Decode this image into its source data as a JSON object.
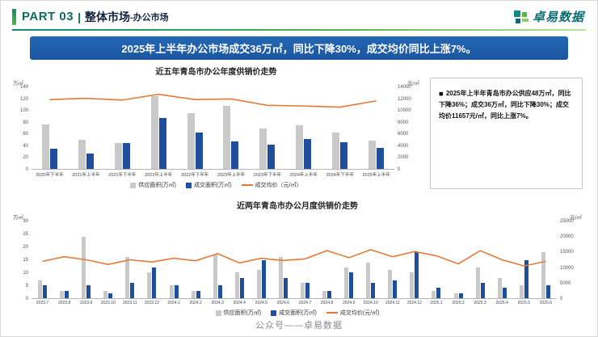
{
  "header": {
    "part_label": "PART 03",
    "divider": "|",
    "title_main": "整体市场",
    "title_sub": "-办公市场",
    "logo_text": "卓易数据"
  },
  "banner": {
    "text": "2025年上半年办公市场成交36万㎡，同比下降30%，成交均价同比上涨7%。"
  },
  "summary_box": {
    "bullet": "◼",
    "text": "2025年上半年青岛市办公供应48万㎡，同比下降36%；成交36万㎡，同比下降30%；成交均价11657元/㎡，同比上涨7%。"
  },
  "footer": {
    "text": "公众号——卓易数据"
  },
  "colors": {
    "accent_teal": "#0e8a7e",
    "accent_green": "#57b847",
    "banner_blue": "#1c55a0",
    "supply_gray": "#c9c9c9",
    "sales_blue": "#1f4e9e",
    "price_orange": "#e07b39"
  },
  "chart_data": [
    {
      "type": "bar",
      "title": "近五年青岛市办公年度供销价走势",
      "left_axis_unit": "万㎡",
      "right_axis_unit": "元/㎡",
      "left_max": 140,
      "right_max": 14000,
      "left_ticks": [
        0,
        20,
        40,
        60,
        80,
        100,
        120,
        140
      ],
      "right_ticks": [
        0,
        2000,
        4000,
        6000,
        8000,
        10000,
        12000,
        14000
      ],
      "categories": [
        "2020年下半年",
        "2021年上半年",
        "2021年下半年",
        "2022年上半年",
        "2022年下半年",
        "2023年上半年",
        "2023年下半年",
        "2024年上半年",
        "2024年下半年",
        "2025年上半年"
      ],
      "series": [
        {
          "name": "供应面积(万㎡)",
          "type": "bar",
          "axis": "left",
          "color": "#c9c9c9",
          "values": [
            76,
            50,
            44,
            125,
            96,
            108,
            70,
            75,
            62,
            48
          ]
        },
        {
          "name": "成交面积(万㎡)",
          "type": "bar",
          "axis": "left",
          "color": "#1f4e9e",
          "values": [
            35,
            27,
            44,
            88,
            62,
            47,
            41,
            51,
            46,
            36
          ]
        },
        {
          "name": "成交均价（元/㎡）",
          "type": "line",
          "axis": "right",
          "color": "#e07b39",
          "values": [
            11900,
            12100,
            11800,
            12800,
            11900,
            12000,
            10900,
            10800,
            10600,
            11657
          ]
        }
      ]
    },
    {
      "type": "bar",
      "title": "近两年青岛市办公月度供销价走势",
      "left_axis_unit": "万㎡",
      "right_axis_unit": "元/㎡",
      "left_max": 30,
      "right_max": 25000,
      "left_ticks": [
        0,
        5,
        10,
        15,
        20,
        25,
        30
      ],
      "right_ticks": [
        0,
        5000,
        10000,
        15000,
        20000,
        25000
      ],
      "categories": [
        "2023.7",
        "2023.8",
        "2023.9",
        "2023.10",
        "2023.11",
        "2023.12",
        "2024.1",
        "2024.2",
        "2024.3",
        "2024.4",
        "2024.5",
        "2024.6",
        "2024.7",
        "2024.8",
        "2024.9",
        "2024.10",
        "2024.11",
        "2024.12",
        "2025.1",
        "2025.2",
        "2025.3",
        "2025.4",
        "2025.5",
        "2025.6"
      ],
      "series": [
        {
          "name": "供应面积(万㎡)",
          "type": "bar",
          "axis": "left",
          "color": "#c9c9c9",
          "values": [
            7,
            3,
            24,
            3,
            16,
            10,
            5,
            3,
            17,
            10,
            11,
            16,
            6,
            3,
            12,
            14,
            11,
            10,
            3,
            2,
            12,
            8,
            5,
            18
          ]
        },
        {
          "name": "成交面积(万㎡)",
          "type": "bar",
          "axis": "left",
          "color": "#1f4e9e",
          "values": [
            5,
            3,
            5,
            2,
            6,
            12,
            5,
            3,
            5,
            8,
            15,
            8,
            6,
            3,
            10,
            6,
            7,
            18,
            4,
            2,
            6,
            4,
            15,
            5
          ]
        },
        {
          "name": "成交均价(元/㎡)",
          "type": "line",
          "axis": "right",
          "color": "#e07b39",
          "values": [
            12000,
            13500,
            12500,
            11000,
            12500,
            11800,
            13000,
            12200,
            14500,
            11500,
            13000,
            12300,
            12800,
            15500,
            13200,
            15800,
            13500,
            15200,
            13800,
            11200,
            15500,
            12500,
            10500,
            12000
          ]
        }
      ]
    }
  ]
}
